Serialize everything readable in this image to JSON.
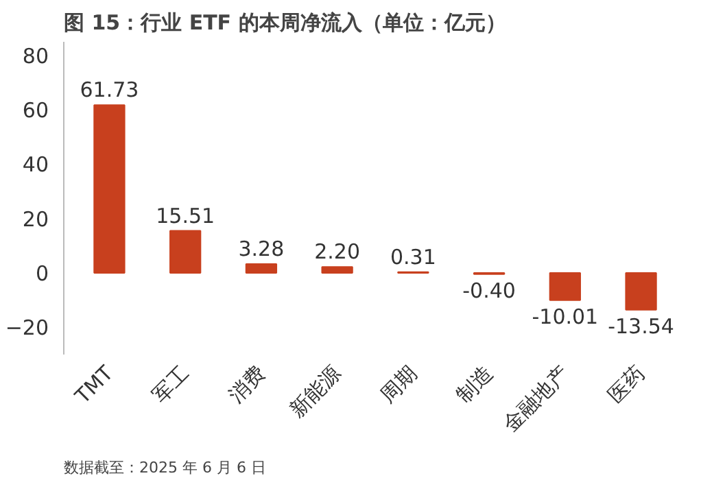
{
  "chart_data": {
    "type": "bar",
    "title": "图 15：行业 ETF 的本周净流入（单位：亿元）",
    "categories": [
      "TMT",
      "军工",
      "消费",
      "新能源",
      "周期",
      "制造",
      "金融地产",
      "医药"
    ],
    "values": [
      61.73,
      15.51,
      3.28,
      2.2,
      0.31,
      -0.4,
      -10.01,
      -13.54
    ],
    "color": "#c8401e",
    "value_labels": [
      "61.73",
      "15.51",
      "3.28",
      "2.20",
      "0.31",
      "-0.40",
      "-10.01",
      "-13.54"
    ],
    "ylim": [
      -30,
      85
    ],
    "yticks": [
      -20,
      0,
      20,
      40,
      60,
      80
    ],
    "grid": false,
    "annotations": [
      "数据截至：2025 年 6 月 6 日"
    ]
  }
}
